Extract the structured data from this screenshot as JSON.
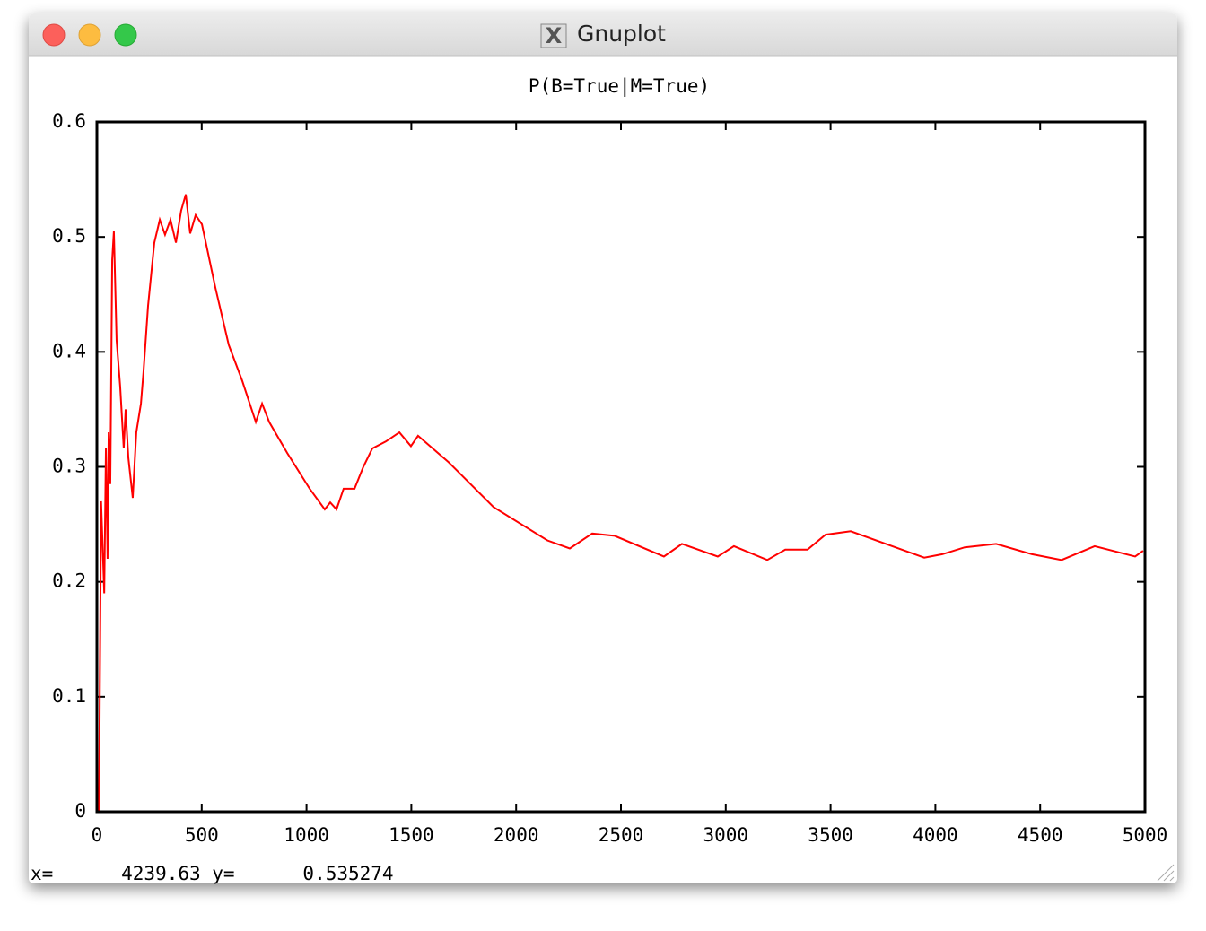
{
  "window": {
    "title": "Gnuplot",
    "status": "x=      4239.63 y=      0.535274"
  },
  "chart_data": {
    "type": "line",
    "title": "P(B=True|M=True)",
    "x": [
      10,
      20,
      35,
      43,
      51,
      56,
      64,
      73,
      81,
      94,
      111,
      128,
      137,
      150,
      171,
      188,
      210,
      222,
      244,
      274,
      300,
      325,
      351,
      377,
      402,
      424,
      445,
      471,
      501,
      565,
      629,
      693,
      758,
      788,
      822,
      908,
      1015,
      1087,
      1113,
      1143,
      1177,
      1229,
      1271,
      1314,
      1378,
      1443,
      1498,
      1532,
      1678,
      1892,
      2149,
      2256,
      2363,
      2470,
      2705,
      2791,
      2962,
      3039,
      3198,
      3284,
      3390,
      3476,
      3596,
      3947,
      4033,
      4140,
      4290,
      4461,
      4602,
      4760,
      4953,
      4991
    ],
    "series": [
      {
        "name": "P(B=True|M=True)",
        "color": "#ff0000",
        "values": [
          0,
          0.27,
          0.19,
          0.316,
          0.22,
          0.33,
          0.285,
          0.48,
          0.505,
          0.41,
          0.37,
          0.316,
          0.35,
          0.308,
          0.273,
          0.33,
          0.355,
          0.382,
          0.44,
          0.495,
          0.515,
          0.502,
          0.515,
          0.495,
          0.523,
          0.537,
          0.503,
          0.519,
          0.511,
          0.456,
          0.406,
          0.375,
          0.339,
          0.355,
          0.339,
          0.312,
          0.281,
          0.263,
          0.269,
          0.263,
          0.281,
          0.281,
          0.3,
          0.316,
          0.322,
          0.33,
          0.318,
          0.327,
          0.304,
          0.265,
          0.236,
          0.229,
          0.242,
          0.24,
          0.222,
          0.233,
          0.222,
          0.231,
          0.219,
          0.228,
          0.228,
          0.241,
          0.244,
          0.221,
          0.224,
          0.23,
          0.233,
          0.224,
          0.219,
          0.231,
          0.222,
          0.227
        ]
      }
    ],
    "xlim": [
      0,
      5000
    ],
    "xticks": [
      0,
      500,
      1000,
      1500,
      2000,
      2500,
      3000,
      3500,
      4000,
      4500,
      5000
    ],
    "ylim": [
      0,
      0.6
    ],
    "yticks": [
      0,
      0.1,
      0.2,
      0.3,
      0.4,
      0.5,
      0.6
    ]
  }
}
